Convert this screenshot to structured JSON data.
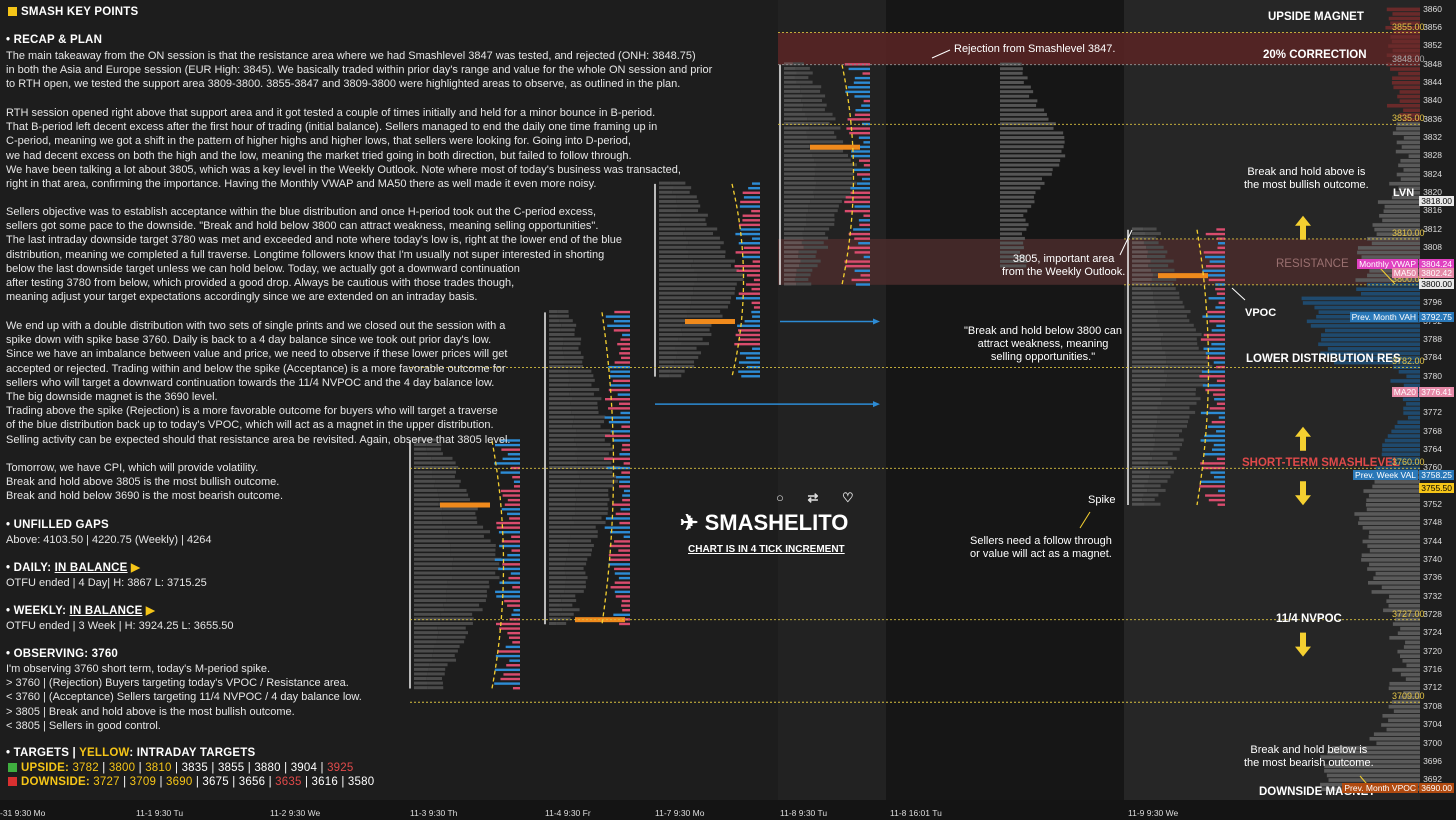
{
  "header": {
    "title": "SMASH KEY POINTS"
  },
  "recap": {
    "heading": "• RECAP & PLAN",
    "p1": [
      "The main takeaway from the ON session is that the resistance area where we had Smashlevel 3847 was tested, and rejected (ONH: 3848.75)",
      "in both the Asia and Europe session (EUR High: 3845). We basically traded within prior day's range and value for the whole ON session and prior",
      "to RTH open, we tested the support area 3809-3800. 3855-3847 and 3809-3800 were highlighted areas to observe, as outlined in the plan."
    ],
    "p2": [
      "RTH session opened right above that support area and it got tested a couple of times initially and held for a minor bounce in B-period.",
      "That B-period left decent excess after the first hour of trading (initial balance). Sellers managed to end the daily one time framing up in",
      "C-period, meaning we got a shift in the pattern of higher highs and higher lows, that sellers were looking for. Going into D-period,",
      "we had decent excess on both the high and the low, meaning the market tried going in both direction, but failed to follow through.",
      "We have been talking a lot about 3805, which was a key level in the Weekly Outlook. Note where most of today's business was transacted,",
      "right in that area, confirming the importance. Having the Monthly VWAP and MA50 there as well made it even more noisy."
    ],
    "p3": [
      "Sellers objective was to establish acceptance within the blue distribution and once H-period took out the C-period excess,",
      "sellers got some pace to the downside. \"Break and hold below 3800 can attract weakness, meaning selling opportunities\".",
      "The last intraday downside target 3780 was met and exceeded and note where today's low is, right at the lower end of the blue",
      "distribution, meaning we completed a full traverse. Longtime followers know that I'm usually not super interested in shorting",
      "below the last downside target unless we can hold below. Today, we actually got a downward continuation",
      "after testing 3780 from below, which provided a good drop. Always be cautious with those trades though,",
      "meaning adjust your target expectations accordingly since we are extended on an intraday basis."
    ],
    "p4": [
      "We end up with a double distribution with two sets of single prints and we closed out the session with a",
      "spike down with spike base 3760. Daily is back to a 4 day balance since we took out prior day's low.",
      "Since we have an imbalance between value and price, we need to observe if these lower prices will get",
      "accepted or rejected. Trading within and below the spike (Acceptance) is a more favorable outcome for",
      "sellers who will target a downward continuation towards the 11/4 NVPOC and the 4 day balance low.",
      "The big downside magnet is the 3690 level.",
      "Trading above the spike (Rejection) is a more favorable outcome for buyers who will target a traverse",
      "of the blue distribution back up to today's VPOC, which will act as a magnet in the upper distribution.",
      "Selling activity can be expected should that resistance area be revisited. Again, observe that 3805 level."
    ],
    "p5": [
      "Tomorrow, we have CPI, which will provide volatility.",
      "Break and hold above 3805 is the most bullish outcome.",
      "Break and hold below 3690 is the most bearish outcome."
    ]
  },
  "gaps": {
    "heading": "• UNFILLED GAPS",
    "line": "Above: 4103.50 | 4220.75 (Weekly) | 4264"
  },
  "daily": {
    "heading": "• DAILY: ",
    "status": "IN BALANCE",
    "line": "OTFU ended | 4 Day| H: 3867 L: 3715.25"
  },
  "weekly": {
    "heading": "• WEEKLY: ",
    "status": "IN BALANCE",
    "line": "OTFU ended | 3 Week | H: 3924.25 L: 3655.50"
  },
  "observing": {
    "heading": "• OBSERVING: 3760",
    "lines": [
      "I'm observing 3760 short term, today's M-period spike.",
      "> 3760 | (Rejection) Buyers targeting today's VPOC / Resistance area.",
      "< 3760 | (Acceptance) Sellers targeting 11/4 NVPOC / 4 day balance low.",
      "> 3805 | Break and hold above is the most bullish outcome.",
      "< 3805 | Sellers in good control."
    ]
  },
  "targets": {
    "heading": "• TARGETS  |  ",
    "heading_yellow": "YELLOW",
    "heading_rest": ": INTRADAY TARGETS",
    "upside_label": "UPSIDE: ",
    "upside": [
      {
        "v": "3782",
        "c": "y"
      },
      {
        "v": "3800",
        "c": "y"
      },
      {
        "v": "3810",
        "c": "y"
      },
      {
        "v": "3835",
        "c": "w"
      },
      {
        "v": "3855",
        "c": "w"
      },
      {
        "v": "3880",
        "c": "w"
      },
      {
        "v": "3904",
        "c": "w"
      },
      {
        "v": "3925",
        "c": "r"
      }
    ],
    "downside_label": "DOWNSIDE: ",
    "downside": [
      {
        "v": "3727",
        "c": "y"
      },
      {
        "v": "3709",
        "c": "y"
      },
      {
        "v": "3690",
        "c": "y"
      },
      {
        "v": "3675",
        "c": "w"
      },
      {
        "v": "3656",
        "c": "w"
      },
      {
        "v": "3635",
        "c": "r"
      },
      {
        "v": "3616",
        "c": "w"
      },
      {
        "v": "3580",
        "c": "w"
      }
    ],
    "up_color": "#3fae3f",
    "down_color": "#d93030"
  },
  "brand": {
    "handle": "SMASHELITO",
    "sub": "CHART IS IN 4 TICK INCREMENT"
  },
  "annotations": {
    "rejection": "Rejection from Smashlevel 3847.",
    "area3805": [
      "3805, important area",
      "from the Weekly Outlook."
    ],
    "quote3800": [
      "\"Break and hold below 3800 can",
      "attract weakness, meaning",
      "selling opportunities.\""
    ],
    "spike": "Spike",
    "sellers": [
      "Sellers need a follow through",
      "or value will act as a magnet."
    ],
    "bull": [
      "Break and hold above is",
      "the most bullish outcome."
    ],
    "bear": [
      "Break and hold below is",
      "the most bearish outcome."
    ],
    "vpoc": "VPOC",
    "lvn": "LVN"
  },
  "levels": {
    "upside_magnet": "UPSIDE MAGNET",
    "correction": "20% CORRECTION",
    "resistance": "RESISTANCE",
    "lower_dist_res": "LOWER DISTRIBUTION RES",
    "smashlevel": "SHORT-TERM SMASHLEVEL",
    "nvpoc": "11/4 NVPOC",
    "downside_magnet": "DOWNSIDE MAGNET"
  },
  "chart_data": {
    "type": "market-profile",
    "y_range": [
      3689,
      3861
    ],
    "y_ticks": [
      3860,
      3856,
      3852,
      3848,
      3844,
      3840,
      3836,
      3832,
      3828,
      3824,
      3820,
      3816,
      3812,
      3808,
      3804,
      3800,
      3796,
      3792,
      3788,
      3784,
      3780,
      3776,
      3772,
      3768,
      3764,
      3760,
      3756,
      3752,
      3748,
      3744,
      3740,
      3736,
      3732,
      3728,
      3724,
      3720,
      3716,
      3712,
      3708,
      3704,
      3700,
      3696,
      3692
    ],
    "x_labels": [
      "-31  9:30 Mo",
      "11-1  9:30 Tu",
      "11-2  9:30 We",
      "11-3  9:30 Th",
      "11-4  9:30 Fr",
      "11-7  9:30 Mo",
      "11-8  9:30 Tu",
      "11-8  16:01 Tu",
      "11-9  9:30 We"
    ],
    "price_levels": [
      {
        "price": 3855.0,
        "label": "3855.00",
        "style": "yellow"
      },
      {
        "price": 3848.0,
        "label": "3848.00",
        "style": "gray"
      },
      {
        "price": 3835.0,
        "label": "3835.00",
        "style": "yellow"
      },
      {
        "price": 3810.0,
        "label": "3810.00",
        "style": "yellow"
      },
      {
        "price": 3800.0,
        "label": "3800.00",
        "style": "yellow"
      },
      {
        "price": 3782.0,
        "label": "3782.00",
        "style": "yellow"
      },
      {
        "price": 3760.0,
        "label": "3760.00",
        "style": "yellow"
      },
      {
        "price": 3727.0,
        "label": "3727.00",
        "style": "yellow"
      },
      {
        "price": 3709.0,
        "label": "3709.00",
        "style": "yellow"
      }
    ],
    "badges": [
      {
        "label": "Monthly VWAP",
        "value": "3804.24",
        "color": "#e040c0"
      },
      {
        "label": "MA50",
        "value": "3802.42",
        "color": "#e68aa8"
      },
      {
        "label": "",
        "value": "3800.00",
        "color": "#e8e8e8"
      },
      {
        "label": "",
        "value": "3818.00",
        "color": "#e8e8e8"
      },
      {
        "label": "Prev. Month VAH",
        "value": "3792.75",
        "color": "#2a78b8"
      },
      {
        "label": "MA20",
        "value": "3776.41",
        "color": "#e68aa8"
      },
      {
        "label": "Prev. Week VAL",
        "value": "3758.25",
        "color": "#2a78b8"
      },
      {
        "label": "",
        "value": "3755.50",
        "color": "#f5c518"
      },
      {
        "label": "Prev. Month VPOC",
        "value": "3690.00",
        "color": "#b04a10"
      }
    ],
    "zones": [
      {
        "name": "upside magnet / 20% correction",
        "from": 3848,
        "to": 3855,
        "color": "#5a2525"
      },
      {
        "name": "resistance",
        "from": 3800,
        "to": 3810,
        "color": "#4a2b2b"
      }
    ],
    "sessions": [
      {
        "date": "11-3",
        "high": 3766,
        "low": 3712,
        "vpoc": 3752
      },
      {
        "date": "11-4",
        "high": 3794,
        "low": 3726,
        "vpoc": 3727
      },
      {
        "date": "11-7",
        "high": 3822,
        "low": 3780,
        "vpoc": 3792
      },
      {
        "date": "11-8",
        "high": 3848,
        "low": 3800,
        "vpoc": 3830
      },
      {
        "date": "11-9",
        "high": 3812,
        "low": 3752,
        "vpoc": 3802
      }
    ]
  }
}
